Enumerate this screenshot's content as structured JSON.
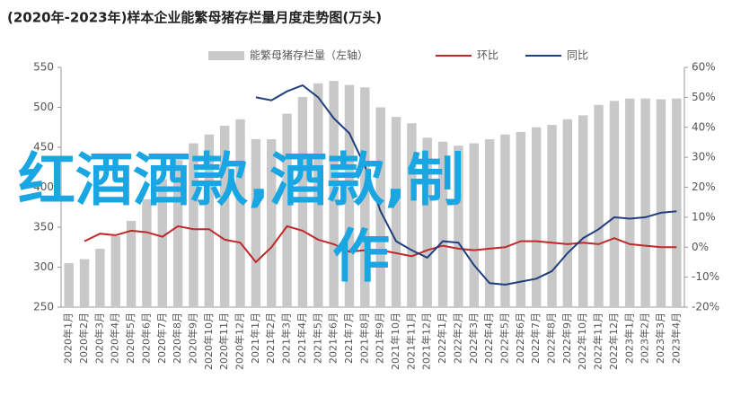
{
  "chart_data": {
    "type": "bar-line",
    "title": "(2020年-2023年)样本企业能繁母猪存栏量月度走势图(万头)",
    "categories": [
      "2020年1月",
      "2020年2月",
      "2020年3月",
      "2020年4月",
      "2020年5月",
      "2020年6月",
      "2020年7月",
      "2020年8月",
      "2020年9月",
      "2020年10月",
      "2020年11月",
      "2020年12月",
      "2021年1月",
      "2021年2月",
      "2021年3月",
      "2021年4月",
      "2021年5月",
      "2021年6月",
      "2021年7月",
      "2021年8月",
      "2021年9月",
      "2021年10月",
      "2021年11月",
      "2021年12月",
      "2022年1月",
      "2022年2月",
      "2022年3月",
      "2022年4月",
      "2022年5月",
      "2022年6月",
      "2022年7月",
      "2022年8月",
      "2022年9月",
      "2022年10月",
      "2022年11月",
      "2022年12月",
      "2023年1月",
      "2023年2月",
      "2023年3月",
      "2023年4月"
    ],
    "series": [
      {
        "name": "能繁母猪存栏量（左轴）",
        "kind": "bar",
        "color": "#c8c8c8",
        "values": [
          305,
          310,
          323,
          339,
          358,
          385,
          410,
          434,
          455,
          466,
          477,
          485,
          460,
          460,
          492,
          513,
          530,
          533,
          528,
          525,
          500,
          488,
          480,
          462,
          457,
          452,
          455,
          460,
          466,
          469,
          475,
          478,
          485,
          490,
          503,
          508,
          511,
          511,
          510,
          511
        ]
      },
      {
        "name": "环比",
        "kind": "line",
        "axis": "y2",
        "color": "#c0282a",
        "values": [
          null,
          2,
          4.5,
          4,
          5.5,
          5,
          3.5,
          7,
          6,
          6,
          2.5,
          1.5,
          -5,
          0,
          7,
          5.5,
          2.5,
          1,
          -1.5,
          -1,
          -1,
          -2,
          -3,
          -1,
          0.5,
          -0.5,
          -1,
          -0.5,
          0,
          2,
          2,
          1.5,
          1,
          1.5,
          1,
          3,
          1,
          0.5,
          0,
          0
        ]
      },
      {
        "name": "同比",
        "kind": "line",
        "axis": "y2",
        "color": "#1f3f7f",
        "values": [
          null,
          null,
          null,
          null,
          null,
          null,
          null,
          null,
          null,
          null,
          null,
          null,
          50,
          49,
          52,
          54,
          50,
          43,
          38,
          27,
          12,
          2,
          -1,
          -3.5,
          2,
          1.5,
          -6,
          -12,
          -12.5,
          -11.5,
          -10.5,
          -8,
          -2,
          3,
          6,
          10,
          9.5,
          10,
          11.5,
          12
        ]
      }
    ],
    "ylim": [
      250,
      550
    ],
    "yticks": [
      250,
      300,
      350,
      400,
      450,
      500,
      550
    ],
    "y2lim": [
      -20,
      60
    ],
    "y2ticks": [
      {
        "value": -20,
        "label": "-20%"
      },
      {
        "value": -10,
        "label": "-10%"
      },
      {
        "value": 0,
        "label": "0%"
      },
      {
        "value": 10,
        "label": "10%"
      },
      {
        "value": 20,
        "label": "20%"
      },
      {
        "value": 30,
        "label": "30%"
      },
      {
        "value": 40,
        "label": "40%"
      },
      {
        "value": 50,
        "label": "50%"
      },
      {
        "value": 60,
        "label": "60%"
      }
    ],
    "annotations": [
      "红酒酒款,酒款,制",
      "作"
    ]
  }
}
